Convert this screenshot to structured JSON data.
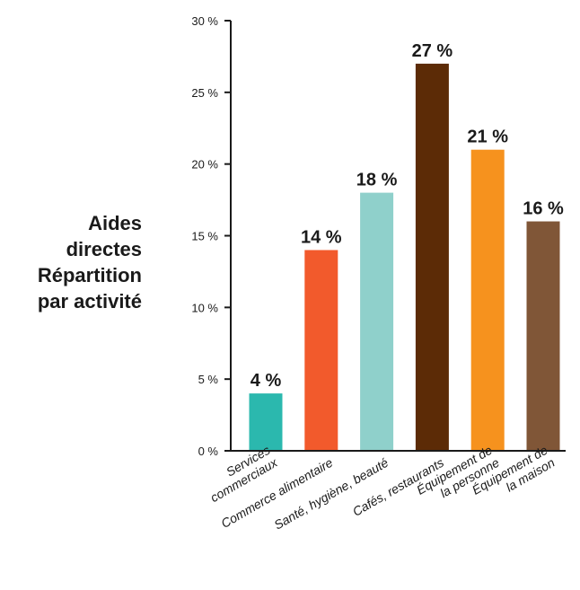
{
  "chart_data": {
    "type": "bar",
    "title": "Aides\ndirectes\nRépartition\npar activité",
    "categories": [
      "Services\ncommerciaux",
      "Commerce alimentaire",
      "Santé, hygiène, beauté",
      "Cafés, restaurants",
      "Équipement de\nla personne",
      "Équipement de\nla maison"
    ],
    "values": [
      4,
      14,
      18,
      27,
      21,
      16
    ],
    "data_labels": [
      "4 %",
      "14 %",
      "18 %",
      "27 %",
      "21 %",
      "16 %"
    ],
    "colors": [
      "#2bb8ae",
      "#f25a2c",
      "#8fd0cb",
      "#5c2b06",
      "#f6921e",
      "#805637"
    ],
    "ylim": [
      0,
      30
    ],
    "yticks": [
      0,
      5,
      10,
      15,
      20,
      25,
      30
    ],
    "ytick_labels": [
      "0 %",
      "5 %",
      "10 %",
      "15 %",
      "20 %",
      "25 %",
      "30 %"
    ],
    "xlabel": "",
    "ylabel": "",
    "grid": false,
    "legend": false
  }
}
